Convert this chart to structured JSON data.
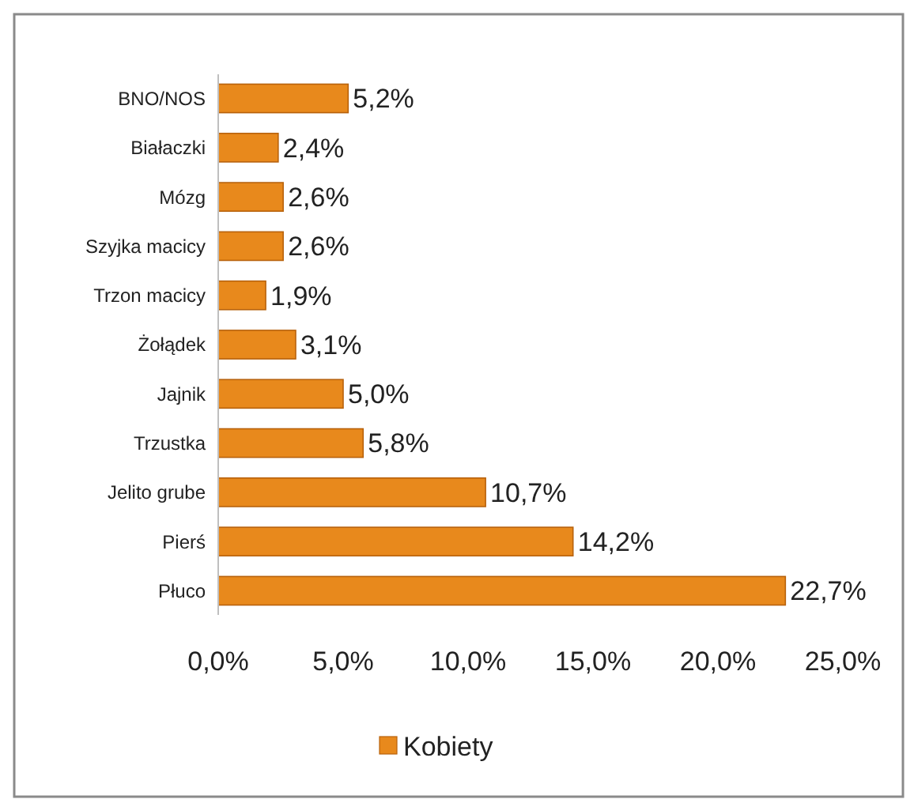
{
  "chart_data": {
    "type": "bar",
    "orientation": "horizontal",
    "categories": [
      "BNO/NOS",
      "Białaczki",
      "Mózg",
      "Szyjka macicy",
      "Trzon macicy",
      "Żołądek",
      "Jajnik",
      "Trzustka",
      "Jelito grube",
      "Pierś",
      "Płuco"
    ],
    "series": [
      {
        "name": "Kobiety",
        "color": "#e8891c",
        "values": [
          5.2,
          2.4,
          2.6,
          2.6,
          1.9,
          3.1,
          5.0,
          5.8,
          10.7,
          14.2,
          22.7
        ],
        "value_labels": [
          "5,2%",
          "2,4%",
          "2,6%",
          "2,6%",
          "1,9%",
          "3,1%",
          "5,0%",
          "5,8%",
          "10,7%",
          "14,2%",
          "22,7%"
        ]
      }
    ],
    "xlim": [
      0,
      25
    ],
    "xticks": [
      {
        "value": 0,
        "label": "0,0%"
      },
      {
        "value": 5,
        "label": "5,0%"
      },
      {
        "value": 10,
        "label": "10,0%"
      },
      {
        "value": 15,
        "label": "15,0%"
      },
      {
        "value": 20,
        "label": "20,0%"
      },
      {
        "value": 25,
        "label": "25,0%"
      }
    ],
    "grid": false,
    "legend": "bottom"
  }
}
